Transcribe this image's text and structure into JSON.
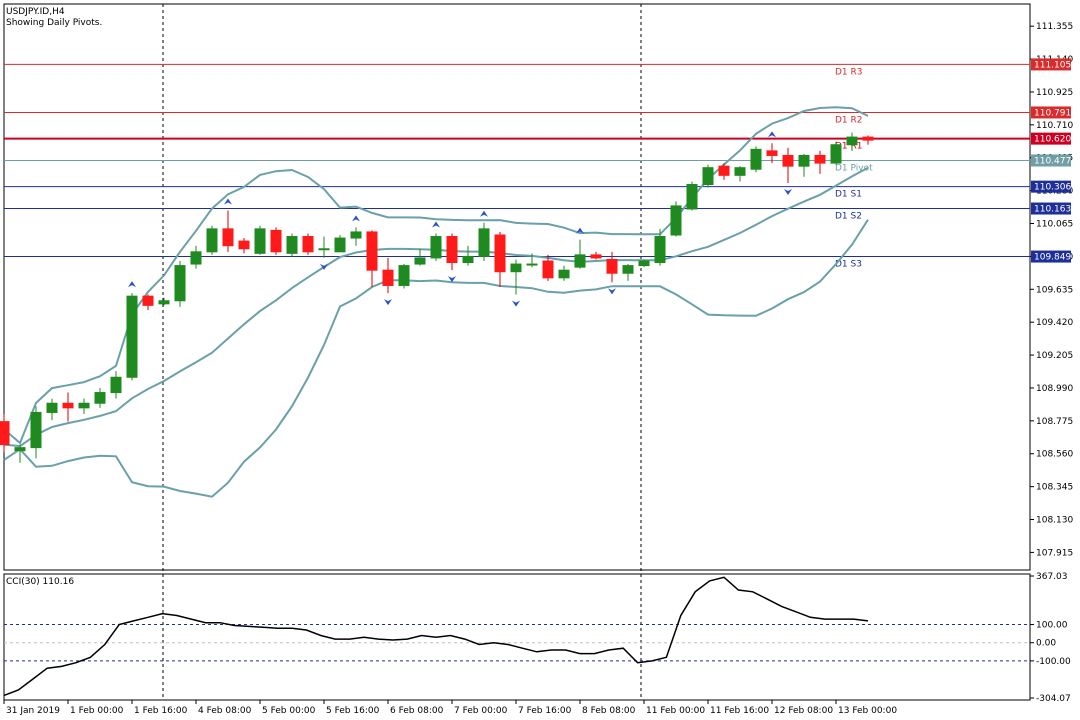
{
  "header": {
    "symbol": "USDJPY.ID,H4",
    "subtitle": "Showing Daily Pivots."
  },
  "price_axis": {
    "ticks": [
      "111.355",
      "111.140",
      "110.925",
      "110.710",
      "110.495",
      "110.280",
      "110.065",
      "109.850",
      "109.635",
      "109.420",
      "109.205",
      "108.990",
      "108.775",
      "108.560",
      "108.345",
      "108.130",
      "107.915"
    ]
  },
  "pivots": [
    {
      "label": "D1 R3",
      "price": "111.105",
      "value": 111.105,
      "color": "#d92b2b",
      "lw": 1
    },
    {
      "label": "D1 R2",
      "price": "110.791",
      "value": 110.791,
      "color": "#d92b2b",
      "lw": 1
    },
    {
      "label": "D1 R1",
      "price": "110.620",
      "value": 110.62,
      "color": "#cc0022",
      "lw": 2
    },
    {
      "label": "D1 Pivot",
      "price": "110.477",
      "value": 110.477,
      "color": "#6f9ea6",
      "lw": 1
    },
    {
      "label": "D1 S1",
      "price": "110.306",
      "value": 110.306,
      "color": "#1f2f99",
      "lw": 1
    },
    {
      "label": "D1 S2",
      "price": "110.163",
      "value": 110.163,
      "color": "#1f2f99",
      "lw": 1
    },
    {
      "label": "D1 S3",
      "price": "109.849",
      "value": 109.849,
      "color": "#1f2f99",
      "lw": 1
    }
  ],
  "cci": {
    "title": "CCI(30) 110.16",
    "ticks": [
      "367.03",
      "100.00",
      "0.00",
      "-100.00",
      "-304.07"
    ],
    "values": [
      -290,
      -260,
      -200,
      -140,
      -130,
      -110,
      -80,
      -10,
      100,
      120,
      140,
      160,
      150,
      130,
      110,
      110,
      95,
      90,
      85,
      80,
      80,
      70,
      40,
      20,
      20,
      30,
      20,
      15,
      20,
      40,
      30,
      40,
      20,
      -10,
      0,
      -10,
      -30,
      -50,
      -40,
      -40,
      -60,
      -60,
      -40,
      -30,
      -110,
      -100,
      -80,
      150,
      280,
      340,
      360,
      290,
      280,
      240,
      200,
      170,
      140,
      130,
      130,
      130,
      120
    ],
    "colors": {
      "line": "#000000",
      "level": "#1f2f99"
    }
  },
  "time_axis": {
    "labels": [
      "31 Jan 2019",
      "1 Feb 00:00",
      "1 Feb 16:00",
      "4 Feb 08:00",
      "5 Feb 00:00",
      "5 Feb 16:00",
      "6 Feb 08:00",
      "7 Feb 00:00",
      "7 Feb 16:00",
      "8 Feb 08:00",
      "11 Feb 00:00",
      "11 Feb 16:00",
      "12 Feb 08:00",
      "13 Feb 00:00"
    ]
  },
  "chart_data": {
    "type": "candlestick",
    "title": "USDJPY.ID,H4",
    "ylim": [
      107.8,
      111.5
    ],
    "ohlc": [
      [
        108.77,
        108.82,
        108.57,
        108.62
      ],
      [
        108.58,
        108.62,
        108.5,
        108.6
      ],
      [
        108.6,
        108.87,
        108.53,
        108.83
      ],
      [
        108.83,
        108.92,
        108.78,
        108.89
      ],
      [
        108.89,
        108.96,
        108.77,
        108.86
      ],
      [
        108.86,
        108.92,
        108.82,
        108.89
      ],
      [
        108.89,
        108.99,
        108.86,
        108.96
      ],
      [
        108.96,
        109.1,
        108.92,
        109.06
      ],
      [
        109.06,
        109.61,
        109.04,
        109.59
      ],
      [
        109.59,
        109.6,
        109.5,
        109.53
      ],
      [
        109.54,
        109.58,
        109.53,
        109.56
      ],
      [
        109.56,
        109.82,
        109.52,
        109.79
      ],
      [
        109.8,
        109.92,
        109.77,
        109.88
      ],
      [
        109.88,
        110.05,
        109.86,
        110.03
      ],
      [
        110.03,
        110.15,
        109.88,
        109.92
      ],
      [
        109.95,
        109.97,
        109.87,
        109.9
      ],
      [
        109.87,
        110.05,
        109.86,
        110.03
      ],
      [
        110.02,
        110.04,
        109.86,
        109.88
      ],
      [
        109.87,
        110.0,
        109.85,
        109.98
      ],
      [
        109.98,
        110.0,
        109.86,
        109.88
      ],
      [
        109.9,
        109.98,
        109.84,
        109.9
      ],
      [
        109.88,
        109.99,
        109.88,
        109.97
      ],
      [
        109.97,
        110.04,
        109.92,
        110.01
      ],
      [
        110.01,
        110.02,
        109.65,
        109.76
      ],
      [
        109.76,
        109.84,
        109.61,
        109.66
      ],
      [
        109.66,
        109.8,
        109.64,
        109.79
      ],
      [
        109.8,
        109.9,
        109.79,
        109.84
      ],
      [
        109.84,
        110.0,
        109.82,
        109.98
      ],
      [
        109.98,
        110.0,
        109.76,
        109.81
      ],
      [
        109.81,
        109.92,
        109.79,
        109.85
      ],
      [
        109.85,
        110.07,
        109.82,
        110.03
      ],
      [
        109.99,
        110.01,
        109.65,
        109.75
      ],
      [
        109.75,
        109.83,
        109.6,
        109.8
      ],
      [
        109.8,
        109.87,
        109.78,
        109.8
      ],
      [
        109.82,
        109.86,
        109.69,
        109.71
      ],
      [
        109.71,
        109.79,
        109.69,
        109.76
      ],
      [
        109.78,
        109.96,
        109.77,
        109.86
      ],
      [
        109.86,
        109.88,
        109.83,
        109.84
      ],
      [
        109.83,
        109.88,
        109.68,
        109.74
      ],
      [
        109.74,
        109.8,
        109.69,
        109.79
      ],
      [
        109.79,
        109.83,
        109.78,
        109.82
      ],
      [
        109.81,
        110.03,
        109.79,
        109.98
      ],
      [
        109.99,
        110.21,
        109.98,
        110.18
      ],
      [
        110.16,
        110.34,
        110.15,
        110.32
      ],
      [
        110.32,
        110.45,
        110.3,
        110.43
      ],
      [
        110.44,
        110.46,
        110.35,
        110.38
      ],
      [
        110.38,
        110.44,
        110.34,
        110.43
      ],
      [
        110.42,
        110.57,
        110.4,
        110.55
      ],
      [
        110.54,
        110.59,
        110.46,
        110.51
      ],
      [
        110.51,
        110.56,
        110.33,
        110.44
      ],
      [
        110.44,
        110.52,
        110.37,
        110.51
      ],
      [
        110.51,
        110.54,
        110.39,
        110.46
      ],
      [
        110.46,
        110.6,
        110.45,
        110.58
      ],
      [
        110.58,
        110.66,
        110.54,
        110.63
      ],
      [
        110.63,
        110.64,
        110.58,
        110.61
      ]
    ]
  }
}
